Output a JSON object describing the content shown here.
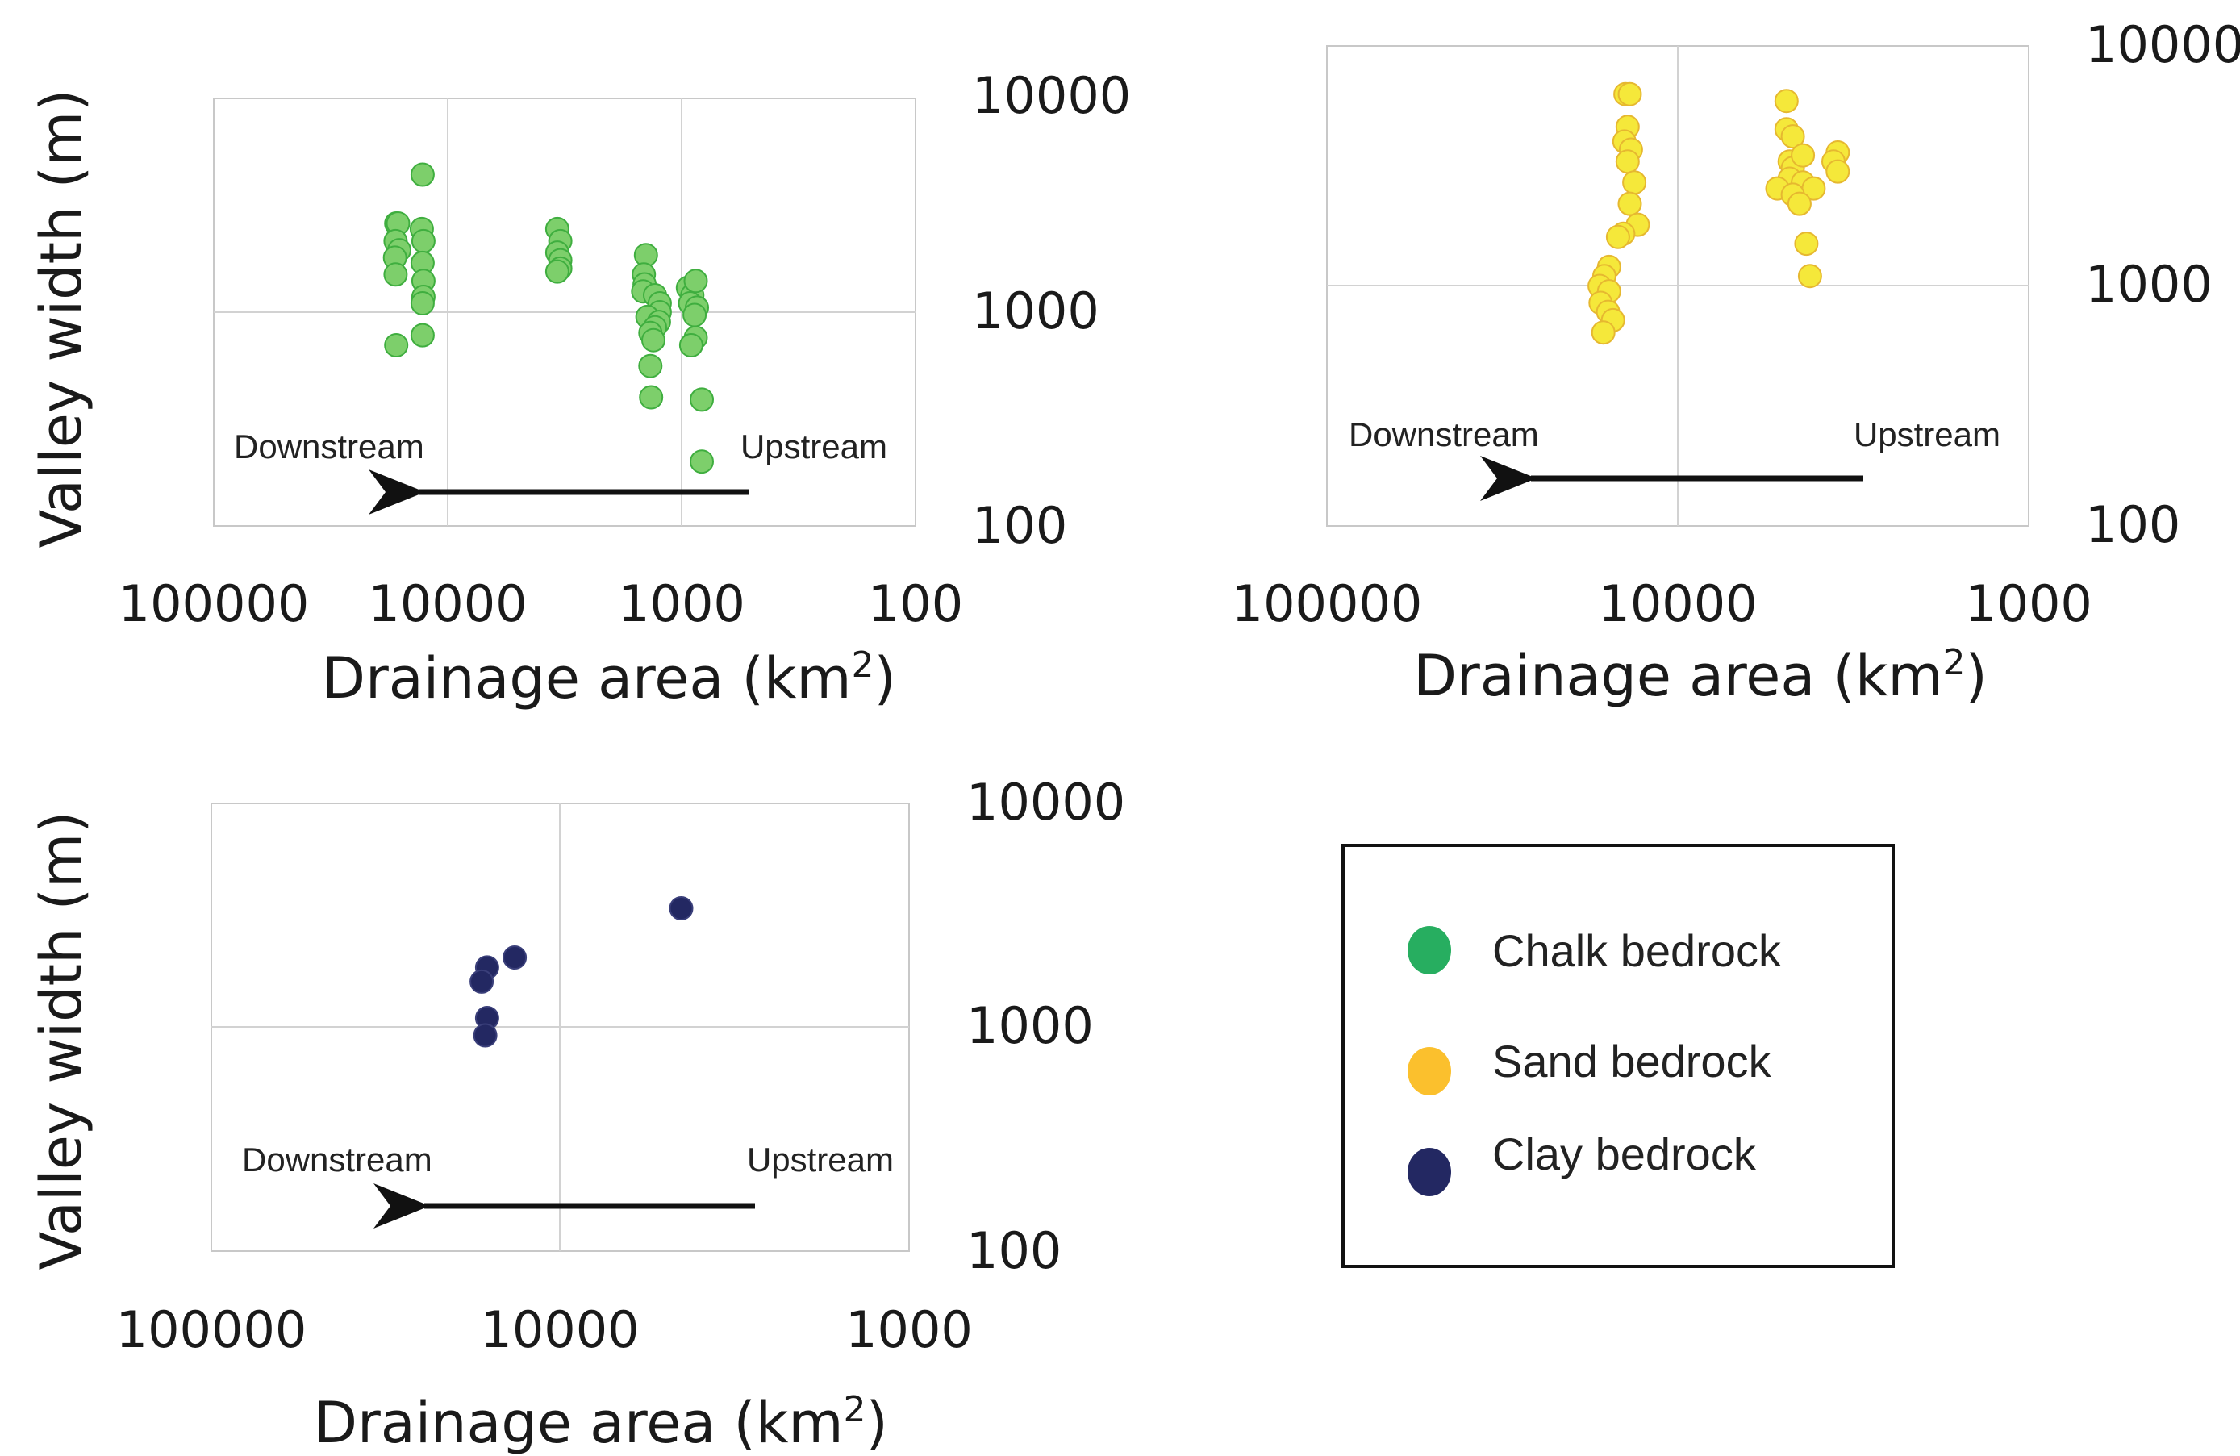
{
  "chart_data": [
    {
      "type": "scatter",
      "title": "",
      "xlabel": "Drainage area (km",
      "xlabel_sup": "2",
      "xlabel_close": ")",
      "ylabel": "Valley width (m)",
      "x_scale": "log",
      "x_reversed": true,
      "xlim": [
        100000,
        100
      ],
      "y_scale": "log",
      "ylim": [
        100,
        10000
      ],
      "x_ticks": [
        "100000",
        "10000",
        "1000",
        "100"
      ],
      "y_ticks": [
        "10000",
        "1000",
        "100"
      ],
      "grid": true,
      "annotations": {
        "left": "Downstream",
        "right": "Upstream"
      },
      "series": [
        {
          "name": "Chalk bedrock",
          "color": "#7dcf6b",
          "edge": "#3fae3f",
          "points": [
            [
              12800,
              4400
            ],
            [
              16600,
              2600
            ],
            [
              16300,
              2600
            ],
            [
              12900,
              2450
            ],
            [
              12700,
              2150
            ],
            [
              16700,
              2150
            ],
            [
              16100,
              1950
            ],
            [
              16800,
              1800
            ],
            [
              12800,
              1700
            ],
            [
              16700,
              1500
            ],
            [
              12700,
              1400
            ],
            [
              12700,
              1180
            ],
            [
              12800,
              1100
            ],
            [
              16600,
              700
            ],
            [
              12800,
              780
            ],
            [
              3400,
              2450
            ],
            [
              3300,
              2150
            ],
            [
              3400,
              1900
            ],
            [
              3300,
              1750
            ],
            [
              3300,
              1600
            ],
            [
              3400,
              1550
            ],
            [
              1420,
              1850
            ],
            [
              1450,
              1500
            ],
            [
              1440,
              1350
            ],
            [
              1460,
              1250
            ],
            [
              1300,
              1200
            ],
            [
              1240,
              1100
            ],
            [
              1240,
              1000
            ],
            [
              1400,
              950
            ],
            [
              1250,
              900
            ],
            [
              1300,
              850
            ],
            [
              1360,
              800
            ],
            [
              1320,
              740
            ],
            [
              1360,
              560
            ],
            [
              1350,
              400
            ],
            [
              940,
              1300
            ],
            [
              900,
              1200
            ],
            [
              870,
              1400
            ],
            [
              920,
              1100
            ],
            [
              860,
              1050
            ],
            [
              880,
              970
            ],
            [
              870,
              760
            ],
            [
              910,
              700
            ],
            [
              820,
              390
            ],
            [
              820,
              200
            ]
          ]
        }
      ]
    },
    {
      "type": "scatter",
      "title": "",
      "xlabel": "Drainage area (km",
      "xlabel_sup": "2",
      "xlabel_close": ")",
      "ylabel": "",
      "x_scale": "log",
      "x_reversed": true,
      "xlim": [
        100000,
        1000
      ],
      "y_scale": "log",
      "ylim": [
        100,
        10000
      ],
      "x_ticks": [
        "100000",
        "10000",
        "1000"
      ],
      "y_ticks": [
        "10000",
        "1000",
        "100"
      ],
      "grid": true,
      "annotations": {
        "left": "Downstream",
        "right": "Upstream"
      },
      "series": [
        {
          "name": "Sand bedrock",
          "color": "#f5e83a",
          "edge": "#e6b830",
          "points": [
            [
              14100,
              6300
            ],
            [
              13700,
              6300
            ],
            [
              13900,
              4600
            ],
            [
              14200,
              4000
            ],
            [
              13600,
              3700
            ],
            [
              13900,
              3300
            ],
            [
              13300,
              2700
            ],
            [
              13700,
              2200
            ],
            [
              13000,
              1800
            ],
            [
              14300,
              1650
            ],
            [
              14800,
              1600
            ],
            [
              15700,
              1200
            ],
            [
              16200,
              1100
            ],
            [
              16700,
              1000
            ],
            [
              15700,
              950
            ],
            [
              16600,
              850
            ],
            [
              15800,
              780
            ],
            [
              15300,
              720
            ],
            [
              16300,
              640
            ],
            [
              4900,
              5900
            ],
            [
              4900,
              4500
            ],
            [
              4700,
              4200
            ],
            [
              4800,
              3300
            ],
            [
              4700,
              3100
            ],
            [
              4400,
              3500
            ],
            [
              3500,
              3600
            ],
            [
              3600,
              3300
            ],
            [
              3500,
              3000
            ],
            [
              4800,
              2800
            ],
            [
              4400,
              2700
            ],
            [
              5200,
              2550
            ],
            [
              4100,
              2550
            ],
            [
              4700,
              2400
            ],
            [
              4500,
              2200
            ],
            [
              4300,
              1500
            ],
            [
              4200,
              1100
            ]
          ]
        }
      ]
    },
    {
      "type": "scatter",
      "title": "",
      "xlabel": "Drainage area (km",
      "xlabel_sup": "2",
      "xlabel_close": ")",
      "ylabel": "Valley width (m)",
      "x_scale": "log",
      "x_reversed": true,
      "xlim": [
        100000,
        1000
      ],
      "y_scale": "log",
      "ylim": [
        100,
        10000
      ],
      "x_ticks": [
        "100000",
        "10000",
        "1000"
      ],
      "y_ticks": [
        "10000",
        "1000",
        "100"
      ],
      "grid": true,
      "annotations": {
        "left": "Downstream",
        "right": "Upstream"
      },
      "series": [
        {
          "name": "Clay bedrock",
          "color": "#232862",
          "edge": "#3a3f7a",
          "points": [
            [
              4500,
              3400
            ],
            [
              13500,
              2050
            ],
            [
              16200,
              1850
            ],
            [
              16800,
              1600
            ],
            [
              16200,
              1100
            ],
            [
              16400,
              920
            ]
          ]
        }
      ]
    }
  ],
  "legend": {
    "items": [
      {
        "label": "Chalk bedrock",
        "color": "#27ae60"
      },
      {
        "label": "Sand bedrock",
        "color": "#fbc02d"
      },
      {
        "label": "Clay bedrock",
        "color": "#232862"
      }
    ]
  }
}
